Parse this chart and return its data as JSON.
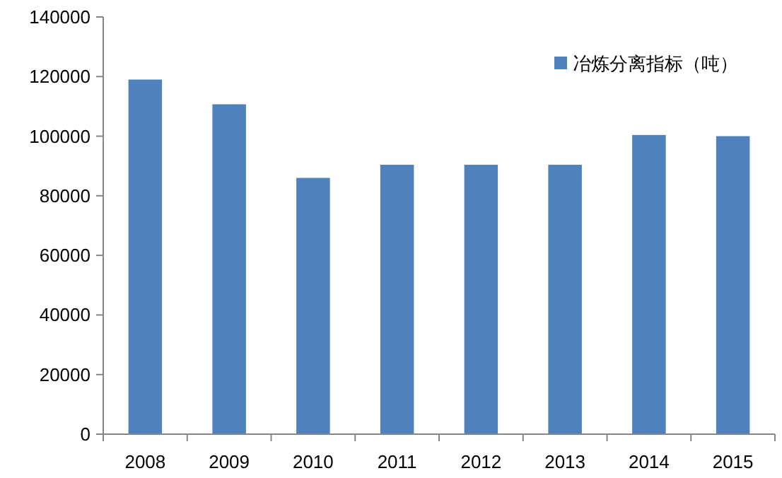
{
  "chart_data": {
    "type": "bar",
    "categories": [
      "2008",
      "2009",
      "2010",
      "2011",
      "2012",
      "2013",
      "2014",
      "2015"
    ],
    "series": [
      {
        "name": "冶炼分离指标（吨）",
        "color": "#4f81bd",
        "values": [
          119000,
          110700,
          86000,
          90400,
          90400,
          90400,
          100400,
          100000
        ]
      }
    ],
    "ylim": [
      0,
      140000
    ],
    "yticks": [
      0,
      20000,
      40000,
      60000,
      80000,
      100000,
      120000,
      140000
    ],
    "grid": false,
    "legend": "top right"
  }
}
